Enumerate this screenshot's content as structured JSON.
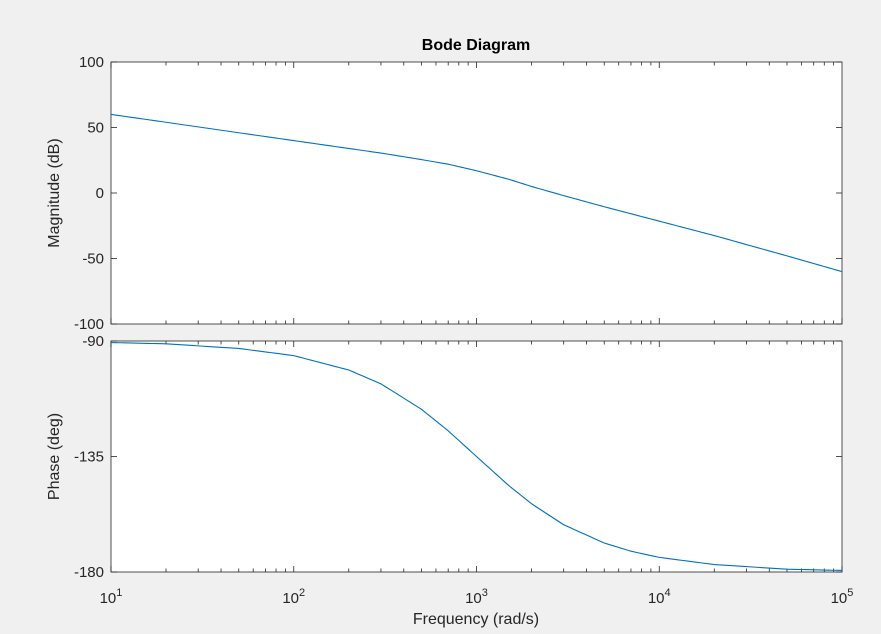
{
  "chart_data": {
    "type": "line",
    "title": "Bode Diagram",
    "xlabel": "Frequency  (rad/s)",
    "x_scale": "log",
    "xlim": [
      10,
      100000
    ],
    "x_ticks": [
      10,
      100,
      1000,
      10000,
      100000
    ],
    "x_tick_labels": [
      {
        "base": "10",
        "exp": "1"
      },
      {
        "base": "10",
        "exp": "2"
      },
      {
        "base": "10",
        "exp": "3"
      },
      {
        "base": "10",
        "exp": "4"
      },
      {
        "base": "10",
        "exp": "5"
      }
    ],
    "line_color": "#0072bd",
    "grid": false,
    "panels": [
      {
        "name": "magnitude",
        "ylabel": "Magnitude (dB)",
        "ylim": [
          -100,
          100
        ],
        "y_ticks": [
          -100,
          -50,
          0,
          50,
          100
        ],
        "y_tick_labels": [
          "-100",
          "-50",
          "0",
          "50",
          "100"
        ],
        "series": [
          {
            "x": [
              10,
              20,
              50,
              100,
              200,
              300,
              500,
              700,
              1000,
              1500,
              2000,
              3000,
              5000,
              10000,
              20000,
              50000,
              100000
            ],
            "values": [
              60,
              54,
              46,
              40,
              34,
              30.5,
              25.5,
              22,
              17,
              10.5,
              5,
              -2,
              -10.5,
              -21.5,
              -32.5,
              -48,
              -60
            ]
          }
        ]
      },
      {
        "name": "phase",
        "ylabel": "Phase (deg)",
        "ylim": [
          -180,
          -90
        ],
        "y_ticks": [
          -180,
          -135,
          -90
        ],
        "y_tick_labels": [
          "-180",
          "-135",
          "-90"
        ],
        "series": [
          {
            "x": [
              10,
              20,
              50,
              100,
              200,
              300,
              500,
              700,
              1000,
              1500,
              2000,
              3000,
              5000,
              7000,
              10000,
              20000,
              50000,
              100000
            ],
            "values": [
              -90.6,
              -91.1,
              -92.9,
              -95.7,
              -101.3,
              -106.7,
              -116.6,
              -125.0,
              -135.0,
              -146.3,
              -153.4,
              -161.6,
              -168.7,
              -171.9,
              -174.3,
              -177.1,
              -178.9,
              -179.4
            ]
          }
        ]
      }
    ]
  }
}
